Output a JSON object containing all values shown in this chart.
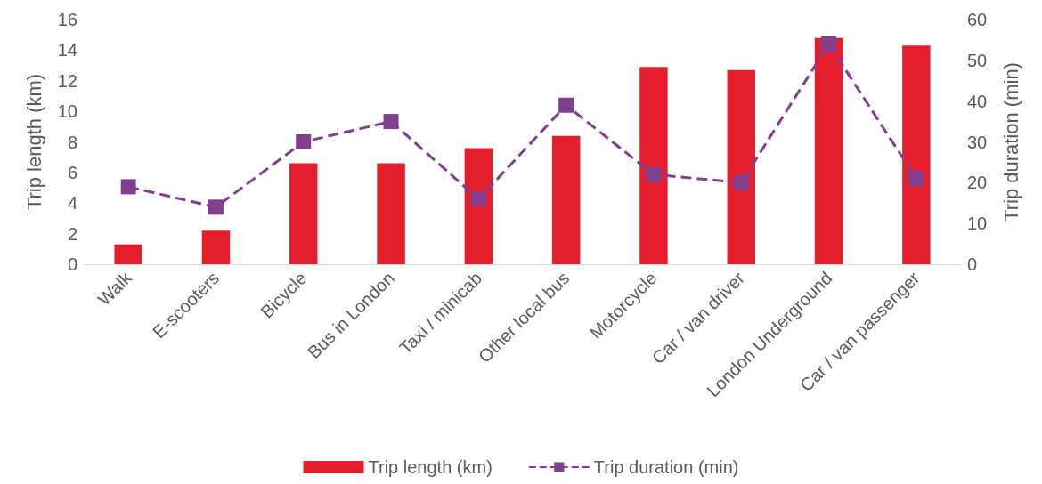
{
  "chart_data": {
    "type": "bar",
    "categories": [
      "Walk",
      "E-scooters",
      "Bicycle",
      "Bus in London",
      "Taxi / minicab",
      "Other local bus",
      "Motorcycle",
      "Car / van driver",
      "London Underground",
      "Car / van passenger"
    ],
    "series": [
      {
        "name": "Trip length (km)",
        "color": "#e41e2b",
        "values": [
          1.3,
          2.2,
          6.6,
          6.6,
          7.6,
          8.4,
          12.9,
          12.7,
          14.8,
          14.3
        ]
      },
      {
        "name": "Trip duration (min)",
        "type": "line",
        "axis": "y2",
        "color": "#803f8f",
        "marker": "square",
        "line_style": "dashed",
        "values": [
          19,
          14,
          30,
          35,
          16,
          39,
          22,
          20,
          54,
          21
        ]
      }
    ],
    "ylabel": "Trip length (km)",
    "y2label": "Trip duration (min)",
    "ylim": [
      0,
      16
    ],
    "yticks": [
      0,
      2,
      4,
      6,
      8,
      10,
      12,
      14,
      16
    ],
    "y2lim": [
      0,
      60
    ],
    "y2ticks": [
      0,
      10,
      20,
      30,
      40,
      50,
      60
    ],
    "grid": false,
    "legend": "bottom"
  }
}
